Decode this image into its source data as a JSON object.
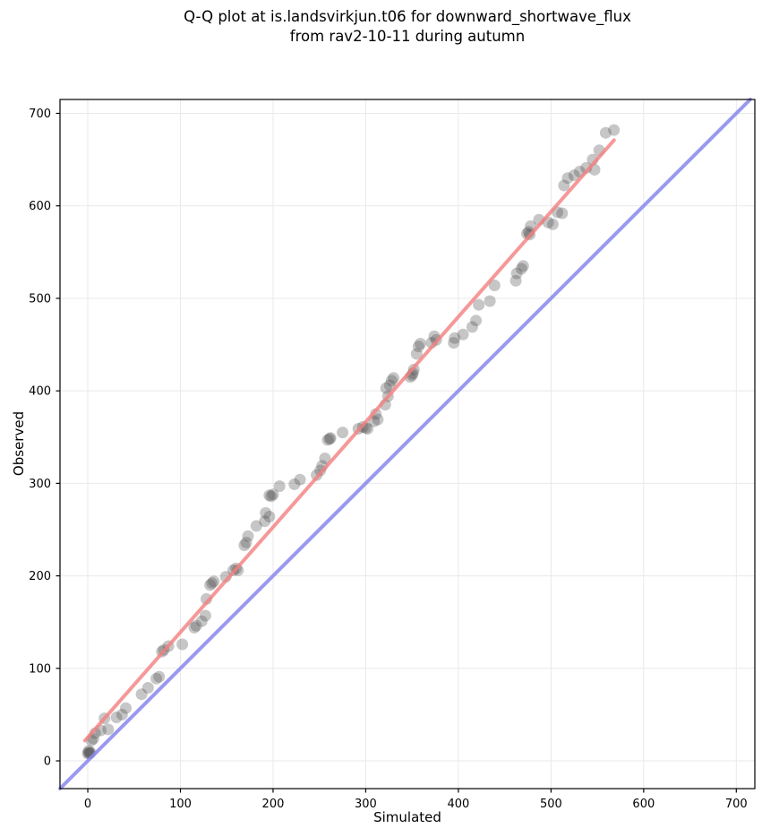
{
  "figure": {
    "title_line1": "Q-Q plot at is.landsvirkjun.t06 for downward_shortwave_flux",
    "title_line2": "from rav2-10-11 during autumn"
  },
  "chart_data": {
    "type": "scatter",
    "title": "Q-Q plot at is.landsvirkjun.t06 for downward_shortwave_flux from rav2-10-11 during autumn",
    "xlabel": "Simulated",
    "ylabel": "Observed",
    "xlim": [
      -30,
      720
    ],
    "ylim": [
      -30,
      715
    ],
    "xticks": [
      0,
      100,
      200,
      300,
      400,
      500,
      600,
      700
    ],
    "yticks": [
      0,
      100,
      200,
      300,
      400,
      500,
      600,
      700
    ],
    "grid": true,
    "legend_position": "none",
    "colors": {
      "points": "#4d4d4d",
      "identity_line": "#8888ee",
      "fit_line": "#f57f7f",
      "grid": "#e9e9e9",
      "axis": "#000000",
      "background": "#ffffff"
    },
    "point_radius": 6.5,
    "point_opacity": 0.32,
    "line_width": 4,
    "identity_line": {
      "name": "y-equals-x-reference",
      "x": [
        -30,
        715
      ],
      "y": [
        -30,
        715
      ]
    },
    "fit_line": {
      "name": "quantile-fit",
      "x": [
        -3,
        568
      ],
      "y": [
        22,
        671
      ]
    },
    "series": [
      {
        "name": "autumn-quantiles",
        "points": [
          [
            0,
            8
          ],
          [
            1,
            9
          ],
          [
            2,
            8
          ],
          [
            1,
            11
          ],
          [
            3,
            9
          ],
          [
            4,
            22
          ],
          [
            6,
            24
          ],
          [
            8,
            30
          ],
          [
            14,
            33
          ],
          [
            22,
            34
          ],
          [
            18,
            46
          ],
          [
            31,
            47
          ],
          [
            37,
            50
          ],
          [
            41,
            57
          ],
          [
            58,
            72
          ],
          [
            65,
            79
          ],
          [
            74,
            89
          ],
          [
            77,
            91
          ],
          [
            80,
            118
          ],
          [
            82,
            120
          ],
          [
            87,
            124
          ],
          [
            102,
            126
          ],
          [
            115,
            144
          ],
          [
            117,
            146
          ],
          [
            123,
            151
          ],
          [
            127,
            157
          ],
          [
            128,
            175
          ],
          [
            132,
            190
          ],
          [
            134,
            192
          ],
          [
            136,
            194
          ],
          [
            149,
            199
          ],
          [
            157,
            206
          ],
          [
            160,
            208
          ],
          [
            162,
            206
          ],
          [
            169,
            233
          ],
          [
            171,
            236
          ],
          [
            173,
            243
          ],
          [
            182,
            254
          ],
          [
            191,
            259
          ],
          [
            192,
            268
          ],
          [
            196,
            264
          ],
          [
            196,
            287
          ],
          [
            198,
            286
          ],
          [
            200,
            288
          ],
          [
            207,
            297
          ],
          [
            223,
            299
          ],
          [
            229,
            304
          ],
          [
            247,
            309
          ],
          [
            251,
            314
          ],
          [
            253,
            319
          ],
          [
            256,
            327
          ],
          [
            259,
            347
          ],
          [
            261,
            348
          ],
          [
            262,
            349
          ],
          [
            275,
            355
          ],
          [
            292,
            359
          ],
          [
            297,
            361
          ],
          [
            300,
            360
          ],
          [
            302,
            359
          ],
          [
            309,
            367
          ],
          [
            311,
            375
          ],
          [
            313,
            369
          ],
          [
            321,
            385
          ],
          [
            322,
            403
          ],
          [
            324,
            394
          ],
          [
            326,
            406
          ],
          [
            328,
            411
          ],
          [
            330,
            414
          ],
          [
            348,
            415
          ],
          [
            350,
            417
          ],
          [
            351,
            419
          ],
          [
            352,
            423
          ],
          [
            355,
            440
          ],
          [
            357,
            448
          ],
          [
            359,
            451
          ],
          [
            371,
            452
          ],
          [
            374,
            459
          ],
          [
            376,
            455
          ],
          [
            395,
            452
          ],
          [
            396,
            457
          ],
          [
            405,
            461
          ],
          [
            415,
            469
          ],
          [
            419,
            476
          ],
          [
            422,
            493
          ],
          [
            434,
            497
          ],
          [
            439,
            514
          ],
          [
            462,
            519
          ],
          [
            463,
            527
          ],
          [
            468,
            532
          ],
          [
            470,
            535
          ],
          [
            474,
            570
          ],
          [
            476,
            572
          ],
          [
            477,
            569
          ],
          [
            478,
            578
          ],
          [
            487,
            585
          ],
          [
            497,
            582
          ],
          [
            502,
            580
          ],
          [
            507,
            593
          ],
          [
            512,
            592
          ],
          [
            514,
            622
          ],
          [
            518,
            630
          ],
          [
            525,
            633
          ],
          [
            531,
            637
          ],
          [
            538,
            641
          ],
          [
            545,
            650
          ],
          [
            547,
            639
          ],
          [
            552,
            660
          ],
          [
            559,
            679
          ],
          [
            568,
            682
          ]
        ]
      }
    ]
  }
}
